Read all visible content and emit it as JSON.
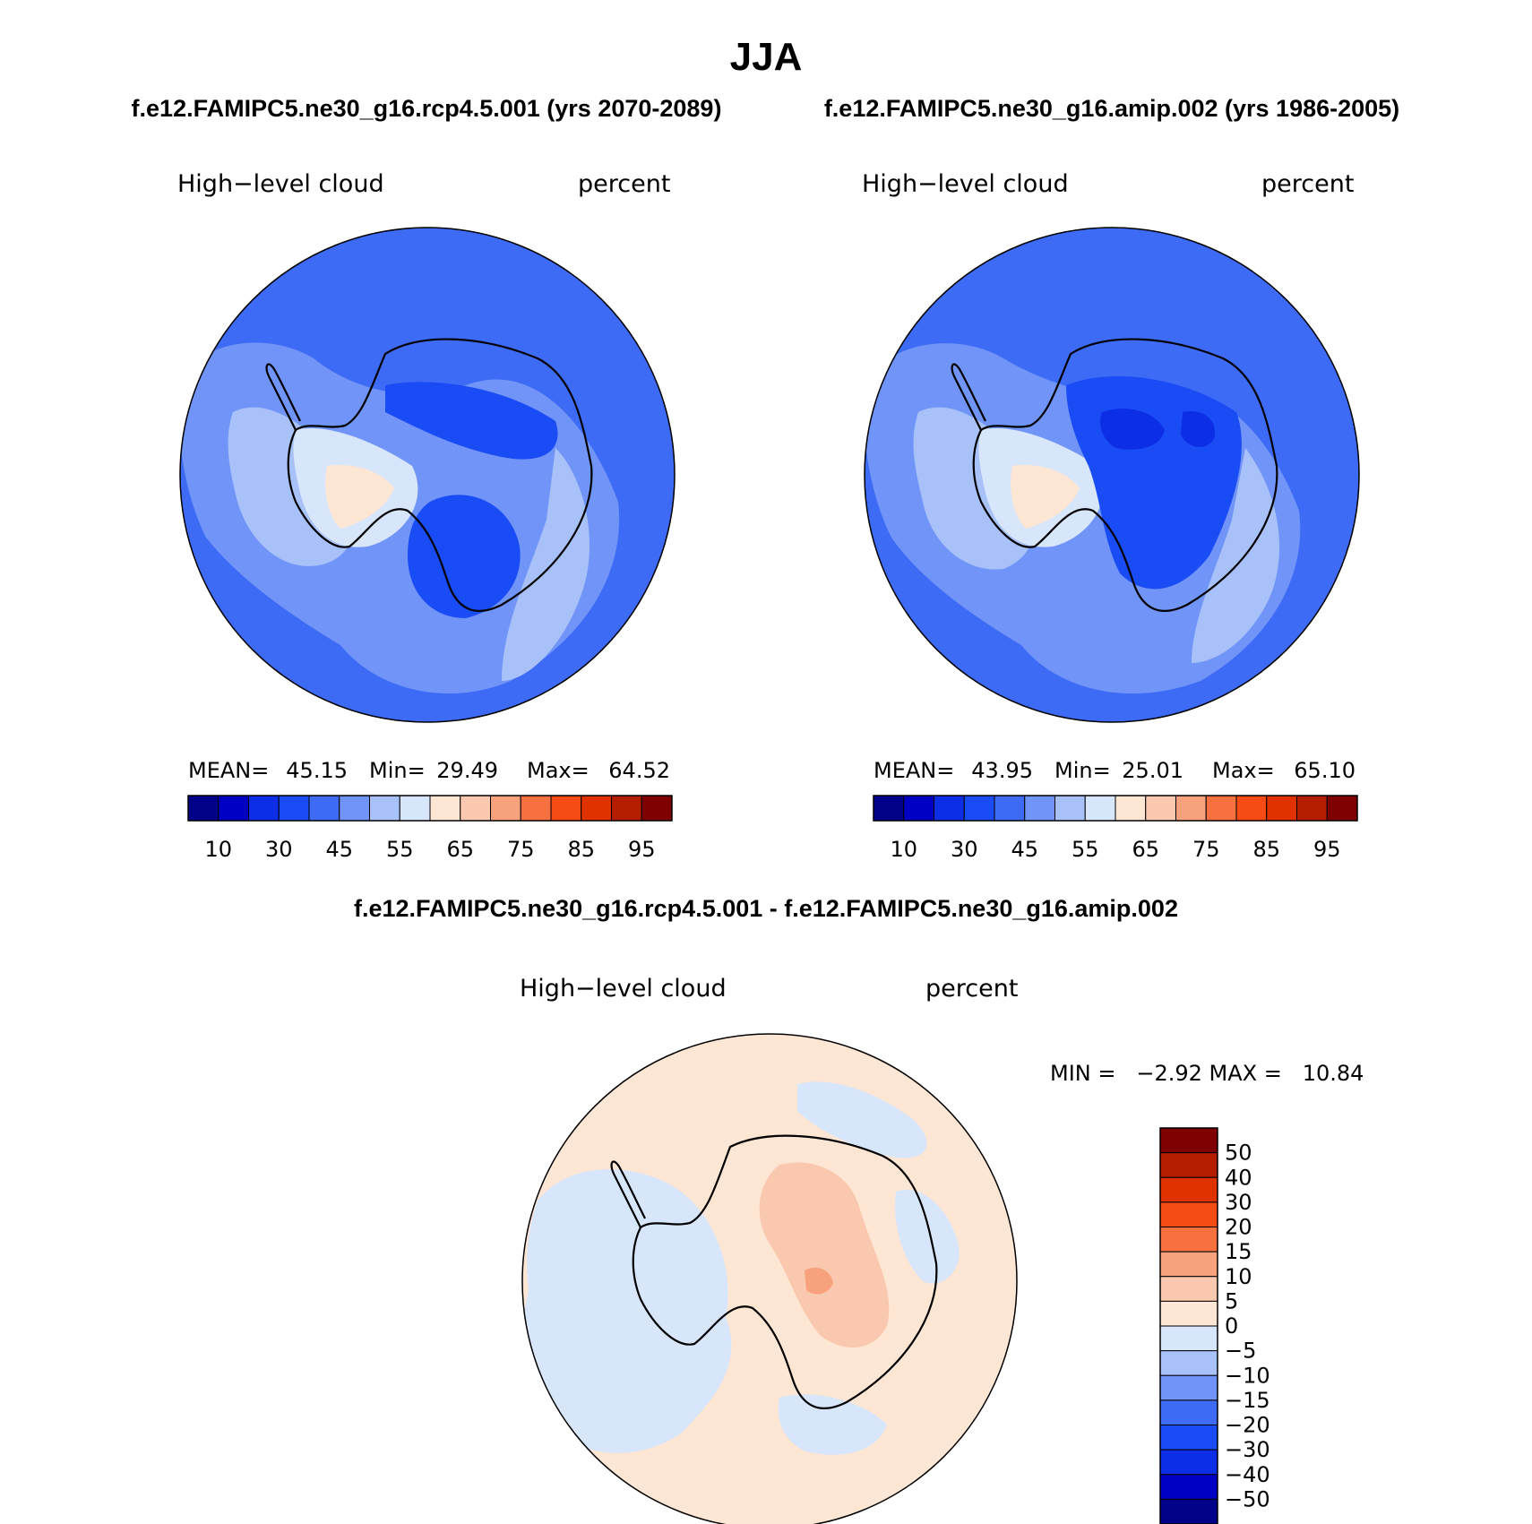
{
  "figure": {
    "title": "JJA",
    "top_left_case": "f.e12.FAMIPC5.ne30_g16.rcp4.5.001 (yrs 2070-2089)",
    "top_right_case": "f.e12.FAMIPC5.ne30_g16.amip.002 (yrs 1986-2005)",
    "diff_title": "f.e12.FAMIPC5.ne30_g16.rcp4.5.001 - f.e12.FAMIPC5.ne30_g16.amip.002"
  },
  "chart_data": [
    {
      "type": "heatmap",
      "projection": "south-polar-stereographic",
      "variable": "High−level cloud",
      "units": "percent",
      "stats": {
        "mean_label": "MEAN=",
        "mean": "45.15",
        "min_label": "Min=",
        "min": "29.49",
        "max_label": "Max=",
        "max": "64.52"
      },
      "colorbar": {
        "orientation": "horizontal",
        "bin_colors": [
          "#000088",
          "#0000c4",
          "#0b2ee6",
          "#1a4cf5",
          "#3d6bf5",
          "#7094f7",
          "#a8c1f9",
          "#d7e6fb",
          "#fde6d3",
          "#fac8ae",
          "#f7a17d",
          "#f7703f",
          "#f64b14",
          "#e03200",
          "#b41d00",
          "#7f0000"
        ],
        "tick_labels": [
          "10",
          "30",
          "45",
          "55",
          "65",
          "75",
          "85",
          "95"
        ]
      }
    },
    {
      "type": "heatmap",
      "projection": "south-polar-stereographic",
      "variable": "High−level cloud",
      "units": "percent",
      "stats": {
        "mean_label": "MEAN=",
        "mean": "43.95",
        "min_label": "Min=",
        "min": "25.01",
        "max_label": "Max=",
        "max": "65.10"
      },
      "colorbar": {
        "orientation": "horizontal",
        "bin_colors": [
          "#000088",
          "#0000c4",
          "#0b2ee6",
          "#1a4cf5",
          "#3d6bf5",
          "#7094f7",
          "#a8c1f9",
          "#d7e6fb",
          "#fde6d3",
          "#fac8ae",
          "#f7a17d",
          "#f7703f",
          "#f64b14",
          "#e03200",
          "#b41d00",
          "#7f0000"
        ],
        "tick_labels": [
          "10",
          "30",
          "45",
          "55",
          "65",
          "75",
          "85",
          "95"
        ]
      }
    },
    {
      "type": "heatmap",
      "projection": "south-polar-stereographic",
      "variable": "High−level cloud",
      "units": "percent",
      "stats": {
        "text": "MIN =   −2.92 MAX =   10.84"
      },
      "colorbar": {
        "orientation": "vertical",
        "bin_colors_top_to_bottom": [
          "#7f0000",
          "#b41d00",
          "#e03200",
          "#f64b14",
          "#f7703f",
          "#f7a17d",
          "#fac8ae",
          "#fde6d3",
          "#d7e6fb",
          "#a8c1f9",
          "#7094f7",
          "#3d6bf5",
          "#1a4cf5",
          "#0b2ee6",
          "#0000c4",
          "#000088"
        ],
        "tick_labels_top_to_bottom": [
          "50",
          "40",
          "30",
          "20",
          "15",
          "10",
          "5",
          "0",
          "−5",
          "−10",
          "−15",
          "−20",
          "−30",
          "−40",
          "−50"
        ]
      }
    }
  ]
}
